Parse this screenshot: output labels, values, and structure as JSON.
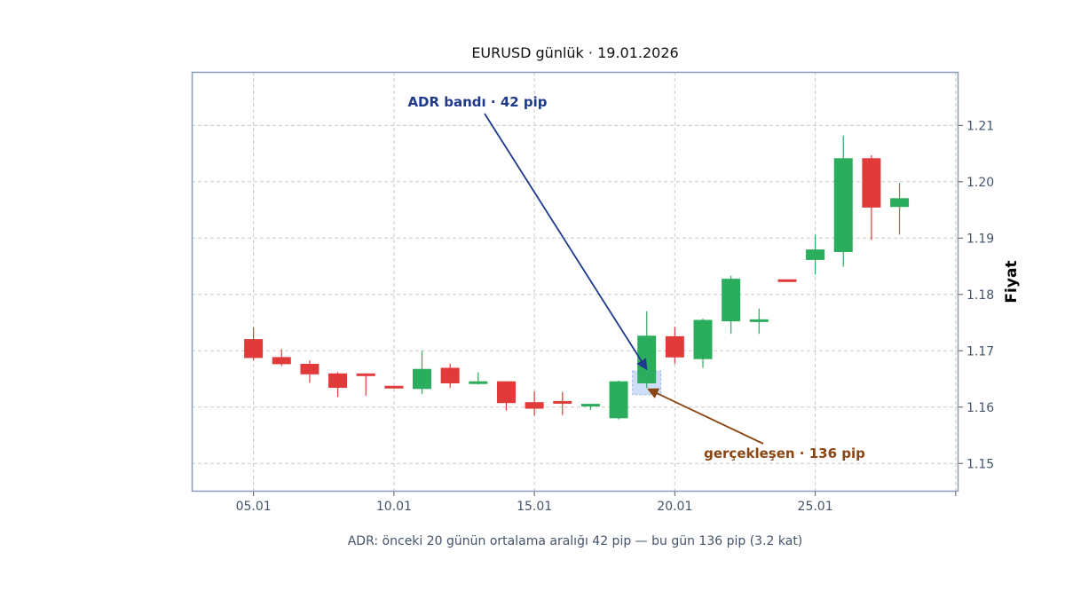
{
  "chart_data": {
    "type": "candlestick",
    "title": "EURUSD günlük · 19.01.2026",
    "subtitle": "ADR: önceki 20 günün ortalama aralığı 42 pip — bu gün 136 pip (3.2 kat)",
    "ylabel": "Fiyat",
    "xlabel": "",
    "x_ticks": [
      5,
      10,
      15,
      20,
      25
    ],
    "x_tick_labels": [
      "05.01",
      "10.01",
      "15.01",
      "20.01",
      "25.01"
    ],
    "y_ticks": [
      1.15,
      1.16,
      1.17,
      1.18,
      1.19,
      1.2,
      1.21
    ],
    "y_tick_labels": [
      "1.15",
      "1.16",
      "1.17",
      "1.18",
      "1.19",
      "1.20",
      "1.21"
    ],
    "xlim": [
      2.8,
      30.1
    ],
    "ylim": [
      1.145,
      1.2195
    ],
    "grid": true,
    "y_axis_side": "right",
    "colors": {
      "up": "#2aad5c",
      "down": "#e03a3a",
      "frame": "#8a9bb8",
      "grid": "#c8c8c8",
      "adr_band": "#c7d8f5"
    },
    "candles": [
      {
        "day": 5,
        "open": 1.172,
        "high": 1.1742,
        "low": 1.1683,
        "close": 1.1688
      },
      {
        "day": 6,
        "open": 1.1688,
        "high": 1.1703,
        "low": 1.1673,
        "close": 1.1677
      },
      {
        "day": 7,
        "open": 1.1676,
        "high": 1.1683,
        "low": 1.1643,
        "close": 1.1659
      },
      {
        "day": 8,
        "open": 1.1659,
        "high": 1.1662,
        "low": 1.1618,
        "close": 1.1635
      },
      {
        "day": 9,
        "open": 1.1659,
        "high": 1.1659,
        "low": 1.162,
        "close": 1.1657
      },
      {
        "day": 10,
        "open": 1.1637,
        "high": 1.1637,
        "low": 1.1633,
        "close": 1.1634
      },
      {
        "day": 11,
        "open": 1.1633,
        "high": 1.17,
        "low": 1.1623,
        "close": 1.1667
      },
      {
        "day": 12,
        "open": 1.1669,
        "high": 1.1677,
        "low": 1.1634,
        "close": 1.1643
      },
      {
        "day": 13,
        "open": 1.1643,
        "high": 1.1662,
        "low": 1.164,
        "close": 1.1645
      },
      {
        "day": 14,
        "open": 1.1645,
        "high": 1.1646,
        "low": 1.1594,
        "close": 1.1608
      },
      {
        "day": 15,
        "open": 1.1608,
        "high": 1.1628,
        "low": 1.1585,
        "close": 1.1598
      },
      {
        "day": 16,
        "open": 1.161,
        "high": 1.1627,
        "low": 1.1586,
        "close": 1.1608
      },
      {
        "day": 17,
        "open": 1.1603,
        "high": 1.1606,
        "low": 1.1595,
        "close": 1.1605
      },
      {
        "day": 18,
        "open": 1.1581,
        "high": 1.1647,
        "low": 1.1578,
        "close": 1.1645
      },
      {
        "day": 19,
        "open": 1.1643,
        "high": 1.177,
        "low": 1.1634,
        "close": 1.1726
      },
      {
        "day": 20,
        "open": 1.1725,
        "high": 1.1742,
        "low": 1.1677,
        "close": 1.1689
      },
      {
        "day": 21,
        "open": 1.1686,
        "high": 1.1757,
        "low": 1.167,
        "close": 1.1754
      },
      {
        "day": 22,
        "open": 1.1753,
        "high": 1.1833,
        "low": 1.173,
        "close": 1.1827
      },
      {
        "day": 23,
        "open": 1.1753,
        "high": 1.1775,
        "low": 1.173,
        "close": 1.1755
      },
      {
        "day": 24,
        "open": 1.1826,
        "high": 1.1826,
        "low": 1.1823,
        "close": 1.1824
      },
      {
        "day": 25,
        "open": 1.1862,
        "high": 1.1906,
        "low": 1.1835,
        "close": 1.1879
      },
      {
        "day": 26,
        "open": 1.1876,
        "high": 1.2082,
        "low": 1.1849,
        "close": 1.2041
      },
      {
        "day": 27,
        "open": 1.2041,
        "high": 1.2047,
        "low": 1.1897,
        "close": 1.1955
      },
      {
        "day": 28,
        "open": 1.1956,
        "high": 1.1998,
        "low": 1.1906,
        "close": 1.197
      }
    ],
    "adr_band": {
      "day": 19,
      "low": 1.1622,
      "high": 1.1664
    },
    "annotations": [
      {
        "text": "ADR bandı · 42 pip",
        "color": "#1f3a8a",
        "target_day": 19,
        "target_price": 1.1667
      },
      {
        "text": "gerçekleşen · 136 pip",
        "color": "#8b4513",
        "target_day": 19.05,
        "target_price": 1.1632
      }
    ]
  }
}
